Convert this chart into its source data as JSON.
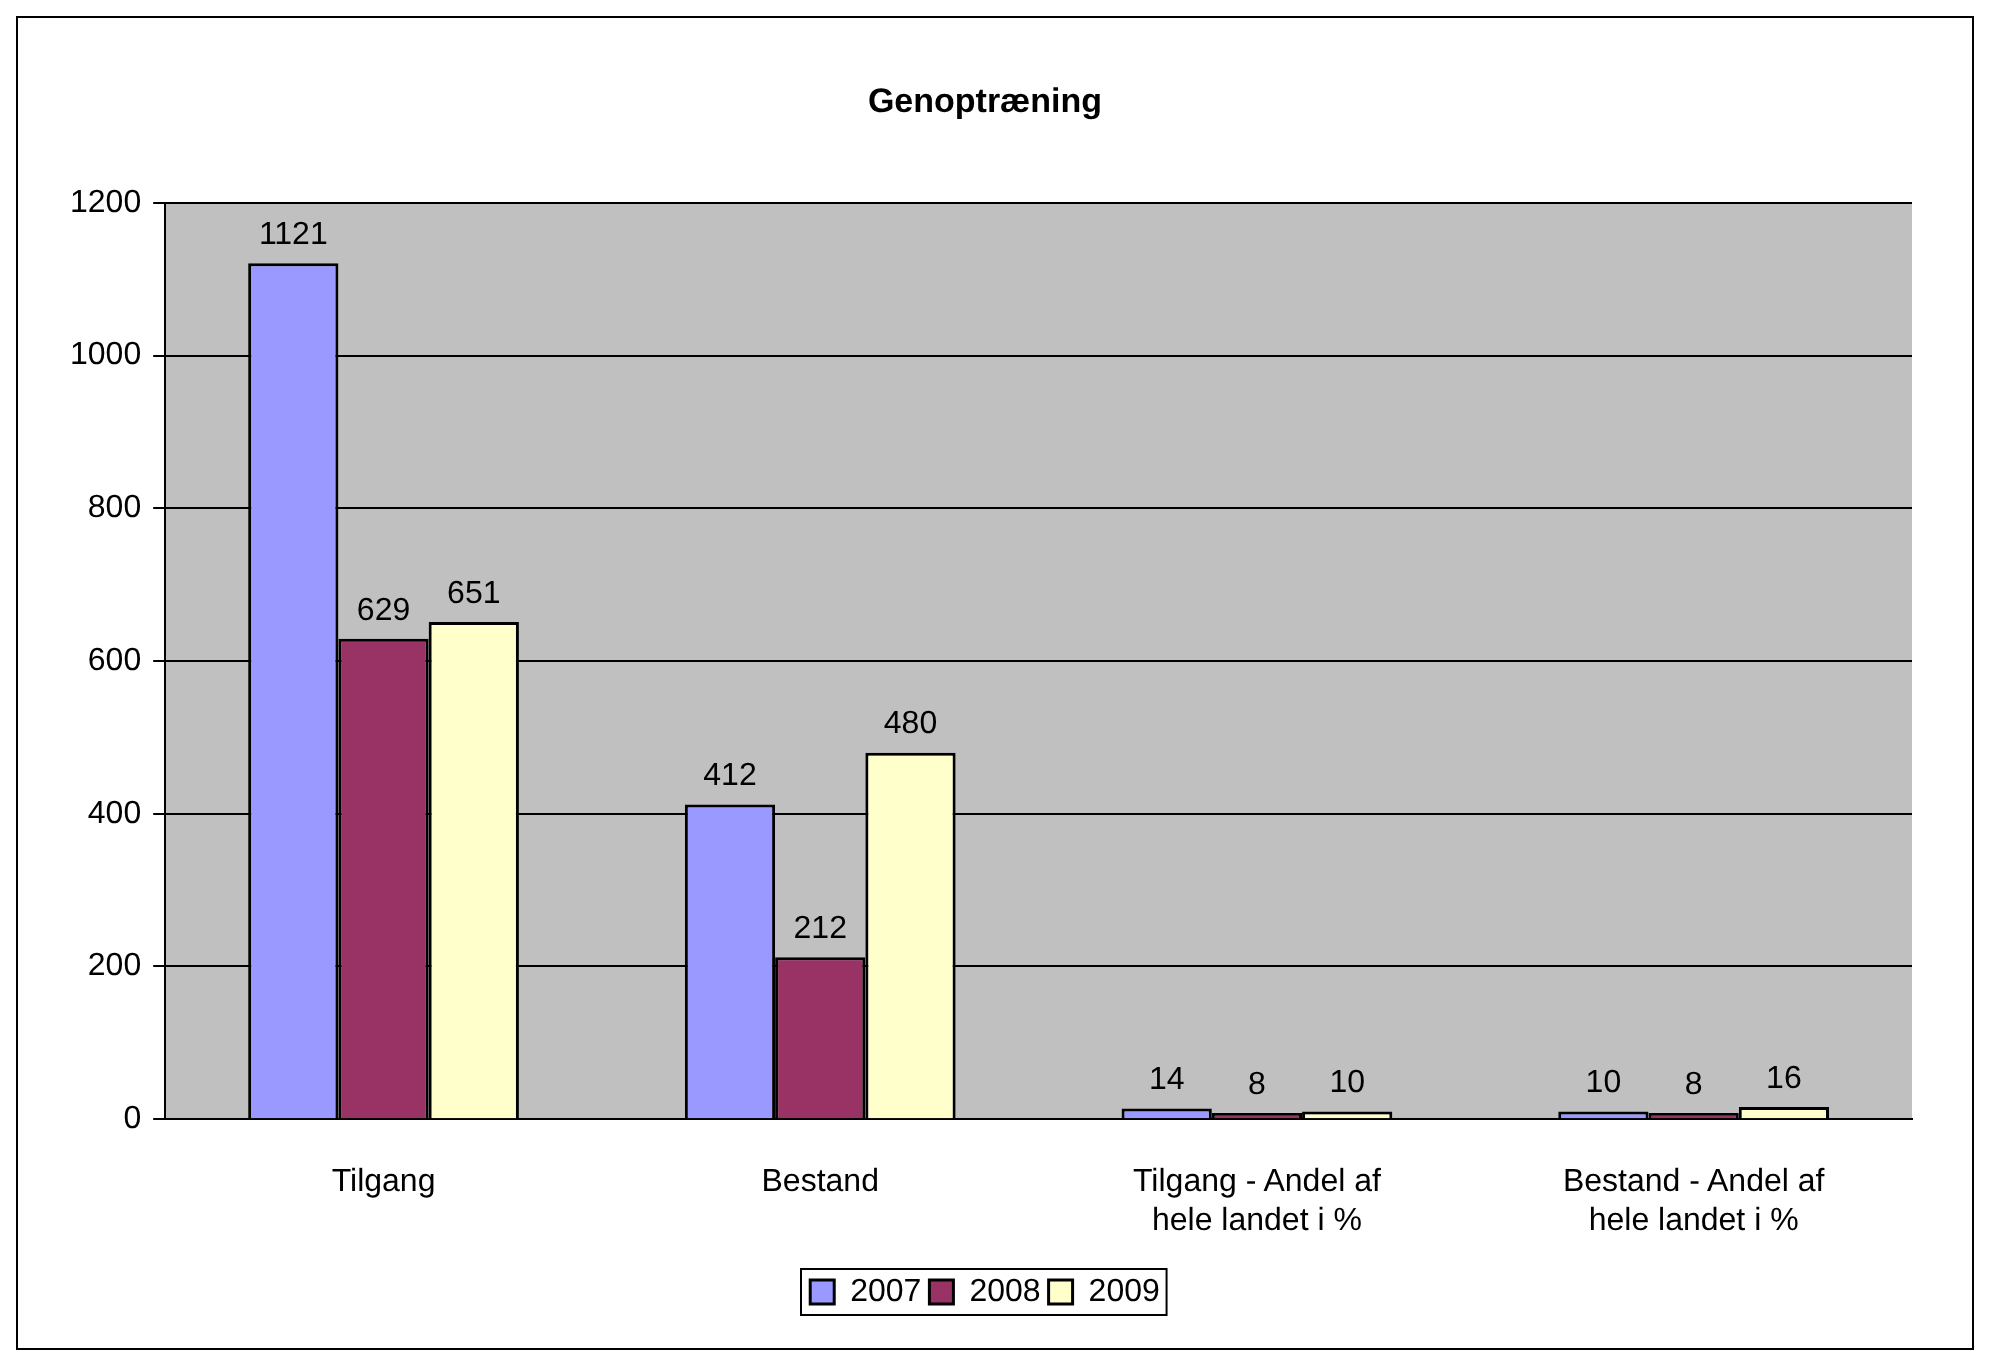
{
  "chart_data": {
    "type": "bar",
    "title": "Genoptræning",
    "categories": [
      "Tilgang",
      "Bestand",
      "Tilgang - Andel af hele landet i %",
      "Bestand - Andel af hele landet i %"
    ],
    "series": [
      {
        "name": "2007",
        "color": "#9999ff",
        "values": [
          1121,
          412,
          14,
          10
        ]
      },
      {
        "name": "2008",
        "color": "#993366",
        "values": [
          629,
          212,
          8,
          8
        ]
      },
      {
        "name": "2009",
        "color": "#ffffcc",
        "values": [
          651,
          480,
          10,
          16
        ]
      }
    ],
    "ylim": [
      0,
      1200
    ],
    "yticks": [
      0,
      200,
      400,
      600,
      800,
      1000,
      1200
    ],
    "grid": "y",
    "legend": "bottom",
    "data_labels": true
  }
}
